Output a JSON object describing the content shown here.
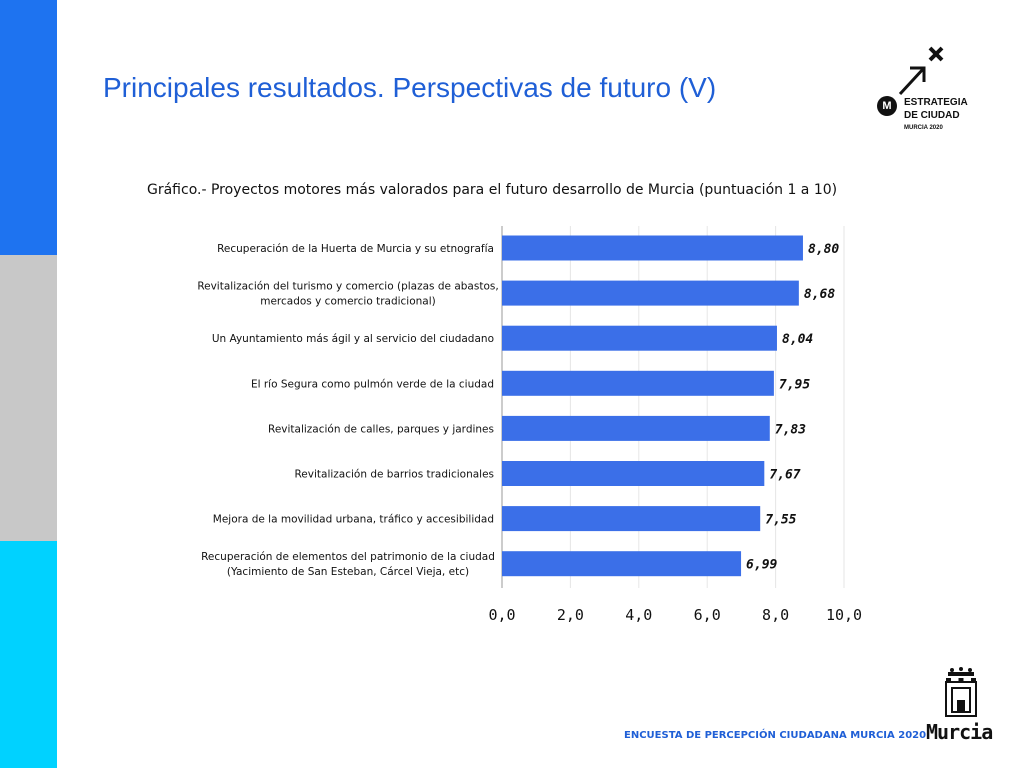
{
  "header": {
    "title": "Principales resultados. Perspectivas de futuro (V)"
  },
  "brand": {
    "logo_lines": [
      "ESTRATEGIA",
      "DE CIUDAD",
      "MURCIA 2020"
    ],
    "logo_badge": "M",
    "footer_text": "ENCUESTA DE PERCEPCIÓN CIUDADANA MURCIA 2020",
    "city_logo": "Murcia"
  },
  "colors": {
    "accent": "#1f5fd6",
    "bar": "#3b6fe8",
    "stripe_top": "#1e73f0",
    "stripe_middle": "#c8c8c8",
    "stripe_bottom": "#00d2ff"
  },
  "chart_data": {
    "type": "bar",
    "orientation": "horizontal",
    "title": "Gráfico.-  Proyectos motores más valorados para el futuro desarrollo de Murcia (puntuación 1 a 10)",
    "categories": [
      [
        "Recuperación de la Huerta de Murcia y su etnografía"
      ],
      [
        "Revitalización del turismo y comercio (plazas de abastos,",
        "mercados y comercio tradicional)"
      ],
      [
        "Un Ayuntamiento más ágil y al servicio del ciudadano"
      ],
      [
        "El río Segura como pulmón verde de la ciudad"
      ],
      [
        "Revitalización de calles, parques y jardines"
      ],
      [
        "Revitalización de barrios tradicionales"
      ],
      [
        "Mejora de la movilidad urbana, tráfico y accesibilidad"
      ],
      [
        "Recuperación de elementos del patrimonio de la ciudad",
        "(Yacimiento de San Esteban, Cárcel Vieja, etc)"
      ]
    ],
    "values": [
      8.8,
      8.68,
      8.04,
      7.95,
      7.83,
      7.67,
      7.55,
      6.99
    ],
    "value_labels": [
      "8,80",
      "8,68",
      "8,04",
      "7,95",
      "7,83",
      "7,67",
      "7,55",
      "6,99"
    ],
    "xlim": [
      0,
      10
    ],
    "xticks": [
      0,
      2,
      4,
      6,
      8,
      10
    ],
    "xtick_labels": [
      "0,0",
      "2,0",
      "4,0",
      "6,0",
      "8,0",
      "10,0"
    ],
    "grid": "vertical",
    "legend": "none"
  }
}
